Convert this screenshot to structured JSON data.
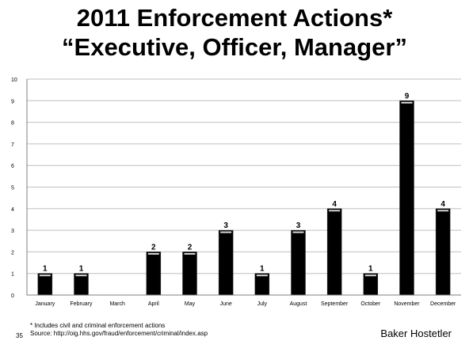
{
  "slide": {
    "title_line1": "2011 Enforcement Actions*",
    "title_line2": "“Executive, Officer, Manager”",
    "footnote_line1": "* Includes civil and criminal enforcement actions",
    "footnote_line2": "Source: http://oig.hhs.gov/fraud/enforcement/criminal/index.asp",
    "slide_number": "35",
    "brand": "Baker Hostetler"
  },
  "chart_data": {
    "type": "bar",
    "title": "",
    "xlabel": "",
    "ylabel": "",
    "categories": [
      "January",
      "February",
      "March",
      "April",
      "May",
      "June",
      "July",
      "August",
      "September",
      "October",
      "November",
      "December"
    ],
    "values": [
      1,
      1,
      0,
      2,
      2,
      3,
      1,
      3,
      4,
      1,
      9,
      4
    ],
    "data_labels": [
      "1",
      "1",
      "",
      "2",
      "2",
      "3",
      "1",
      "3",
      "4",
      "1",
      "9",
      "4"
    ],
    "ylim": [
      0,
      10
    ],
    "yticks": [
      0,
      1,
      2,
      3,
      4,
      5,
      6,
      7,
      8,
      9,
      10
    ],
    "grid": true,
    "legend": "none",
    "bar_color": "#000000",
    "grid_color": "#bfbfbf"
  }
}
